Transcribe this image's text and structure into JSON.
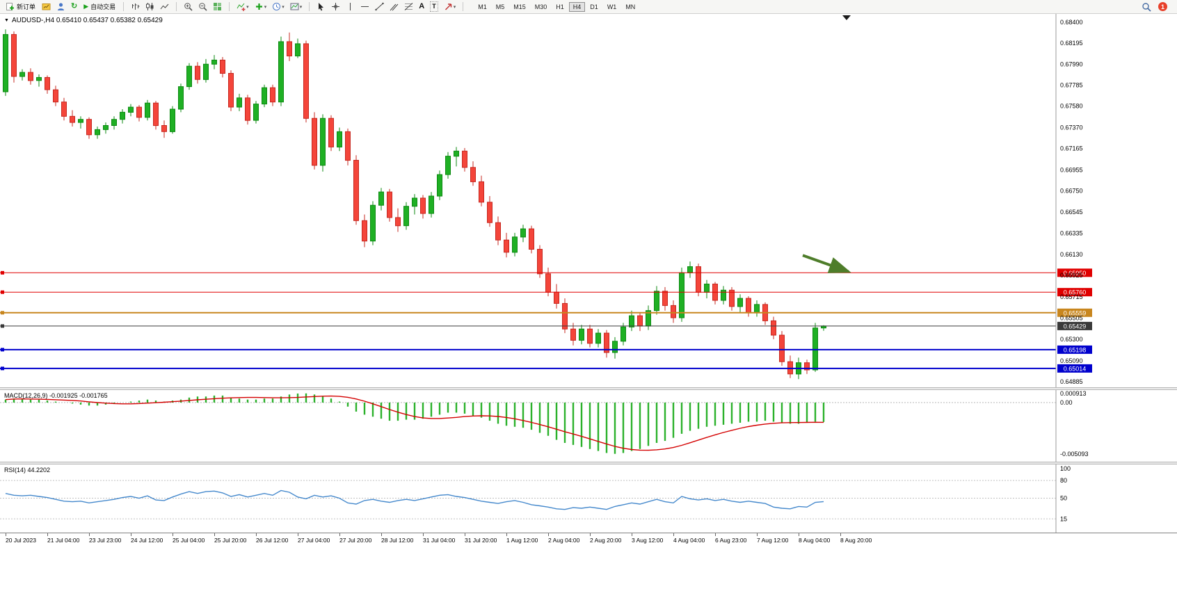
{
  "toolbar": {
    "new_order": "新订单",
    "auto_trading": "自动交易",
    "timeframes": [
      "M1",
      "M5",
      "M15",
      "M30",
      "H1",
      "H4",
      "D1",
      "W1",
      "MN"
    ],
    "active_timeframe": "H4",
    "notification_badge": "1"
  },
  "chart": {
    "title": "AUDUSD-,H4 0.65410 0.65437 0.65382 0.65429"
  },
  "chart_data": [
    {
      "type": "candlestick",
      "symbol": "AUDUSD-",
      "timeframe": "H4",
      "ohlc": {
        "open": "0.65410",
        "high": "0.65437",
        "low": "0.65382",
        "close": "0.65429"
      },
      "colors": {
        "up": "#1fb024",
        "up_border": "#0d8a12",
        "down": "#f4453a",
        "down_border": "#c62820"
      },
      "y_axis_labels": [
        "0.68400",
        "0.68195",
        "0.67990",
        "0.67785",
        "0.67580",
        "0.67370",
        "0.67165",
        "0.66955",
        "0.66750",
        "0.66545",
        "0.66335",
        "0.66130",
        "0.65925",
        "0.65715",
        "0.65505",
        "0.65300",
        "0.65090",
        "0.64885"
      ],
      "x_axis_labels": [
        "20 Jul 2023",
        "21 Jul 04:00",
        "23 Jul 23:00",
        "24 Jul 12:00",
        "25 Jul 04:00",
        "25 Jul 20:00",
        "26 Jul 12:00",
        "27 Jul 04:00",
        "27 Jul 20:00",
        "28 Jul 12:00",
        "31 Jul 04:00",
        "31 Jul 20:00",
        "1 Aug 12:00",
        "2 Aug 04:00",
        "2 Aug 20:00",
        "3 Aug 12:00",
        "4 Aug 04:00",
        "6 Aug 23:00",
        "7 Aug 12:00",
        "8 Aug 04:00",
        "8 Aug 20:00"
      ],
      "hlines": [
        {
          "price": 0.6595,
          "label": "0.65950",
          "color": "#e00000",
          "width": 1
        },
        {
          "price": 0.6576,
          "label": "0.65760",
          "color": "#e00000",
          "width": 1
        },
        {
          "price": 0.65559,
          "label": "0.65559",
          "color": "#c8861e",
          "width": 2
        },
        {
          "price": 0.65429,
          "label": "0.65429",
          "color": "#3a3a3a",
          "width": 1
        },
        {
          "price": 0.65198,
          "label": "0.65198",
          "color": "#0000cd",
          "width": 2
        },
        {
          "price": 0.65014,
          "label": "0.65014",
          "color": "#0000cd",
          "width": 2
        }
      ],
      "arrow": {
        "from_index": 95.5,
        "from_price": 0.6612,
        "to_index": 101,
        "to_price": 0.6596,
        "color": "#4e7d2a"
      },
      "candles": [
        [
          0.6772,
          0.6833,
          0.6768,
          0.6828
        ],
        [
          0.6828,
          0.6831,
          0.6781,
          0.6787
        ],
        [
          0.6787,
          0.6794,
          0.6783,
          0.6791
        ],
        [
          0.6791,
          0.6795,
          0.6779,
          0.6783
        ],
        [
          0.6783,
          0.6789,
          0.6777,
          0.6786
        ],
        [
          0.6786,
          0.6788,
          0.677,
          0.6774
        ],
        [
          0.6774,
          0.6778,
          0.6758,
          0.6762
        ],
        [
          0.6762,
          0.6766,
          0.6744,
          0.6748
        ],
        [
          0.6748,
          0.6754,
          0.6738,
          0.6742
        ],
        [
          0.6742,
          0.6748,
          0.6736,
          0.6745
        ],
        [
          0.6745,
          0.6747,
          0.6726,
          0.673
        ],
        [
          0.673,
          0.6738,
          0.6726,
          0.6735
        ],
        [
          0.6735,
          0.6742,
          0.6731,
          0.6739
        ],
        [
          0.6739,
          0.6748,
          0.6735,
          0.6745
        ],
        [
          0.6745,
          0.6755,
          0.6741,
          0.6752
        ],
        [
          0.6752,
          0.676,
          0.6748,
          0.6757
        ],
        [
          0.6757,
          0.6759,
          0.6743,
          0.6747
        ],
        [
          0.6747,
          0.6764,
          0.6744,
          0.6761
        ],
        [
          0.6761,
          0.6763,
          0.6735,
          0.6739
        ],
        [
          0.6739,
          0.6744,
          0.6727,
          0.6733
        ],
        [
          0.6733,
          0.6758,
          0.6731,
          0.6755
        ],
        [
          0.6755,
          0.678,
          0.6752,
          0.6777
        ],
        [
          0.6777,
          0.68,
          0.6774,
          0.6797
        ],
        [
          0.6797,
          0.6801,
          0.678,
          0.6784
        ],
        [
          0.6784,
          0.6804,
          0.6781,
          0.6799
        ],
        [
          0.6799,
          0.6808,
          0.6794,
          0.6803
        ],
        [
          0.6803,
          0.6806,
          0.6786,
          0.679
        ],
        [
          0.679,
          0.6793,
          0.6753,
          0.6757
        ],
        [
          0.6757,
          0.677,
          0.6753,
          0.6766
        ],
        [
          0.6766,
          0.6769,
          0.674,
          0.6744
        ],
        [
          0.6744,
          0.6763,
          0.6741,
          0.676
        ],
        [
          0.676,
          0.6779,
          0.6757,
          0.6776
        ],
        [
          0.6776,
          0.6779,
          0.6758,
          0.6762
        ],
        [
          0.6762,
          0.6826,
          0.6758,
          0.6821
        ],
        [
          0.6821,
          0.683,
          0.6802,
          0.6807
        ],
        [
          0.6807,
          0.6824,
          0.6805,
          0.6819
        ],
        [
          0.6819,
          0.6822,
          0.6742,
          0.6746
        ],
        [
          0.6746,
          0.6752,
          0.6696,
          0.67
        ],
        [
          0.67,
          0.675,
          0.6694,
          0.6746
        ],
        [
          0.6746,
          0.6749,
          0.6714,
          0.6718
        ],
        [
          0.6718,
          0.6737,
          0.6714,
          0.6733
        ],
        [
          0.6733,
          0.6736,
          0.67,
          0.6705
        ],
        [
          0.6705,
          0.671,
          0.6642,
          0.6646
        ],
        [
          0.6646,
          0.6652,
          0.662,
          0.6626
        ],
        [
          0.6626,
          0.6665,
          0.6622,
          0.6661
        ],
        [
          0.6661,
          0.6678,
          0.6656,
          0.6674
        ],
        [
          0.6674,
          0.6677,
          0.6645,
          0.6649
        ],
        [
          0.6649,
          0.6658,
          0.6635,
          0.6641
        ],
        [
          0.6641,
          0.6664,
          0.6637,
          0.666
        ],
        [
          0.666,
          0.6672,
          0.6652,
          0.6668
        ],
        [
          0.6668,
          0.6671,
          0.6648,
          0.6653
        ],
        [
          0.6653,
          0.6674,
          0.6649,
          0.667
        ],
        [
          0.667,
          0.6695,
          0.6666,
          0.6691
        ],
        [
          0.6691,
          0.6713,
          0.6687,
          0.6709
        ],
        [
          0.6709,
          0.6718,
          0.6699,
          0.6714
        ],
        [
          0.6714,
          0.6717,
          0.6694,
          0.6698
        ],
        [
          0.6698,
          0.6704,
          0.668,
          0.6684
        ],
        [
          0.6684,
          0.669,
          0.666,
          0.6664
        ],
        [
          0.6664,
          0.667,
          0.664,
          0.6644
        ],
        [
          0.6644,
          0.665,
          0.6622,
          0.6627
        ],
        [
          0.6627,
          0.6634,
          0.661,
          0.6615
        ],
        [
          0.6615,
          0.6634,
          0.6611,
          0.663
        ],
        [
          0.663,
          0.6642,
          0.6625,
          0.6638
        ],
        [
          0.6638,
          0.6641,
          0.6614,
          0.6618
        ],
        [
          0.6618,
          0.6622,
          0.659,
          0.6594
        ],
        [
          0.6594,
          0.66,
          0.6572,
          0.6576
        ],
        [
          0.6576,
          0.6584,
          0.656,
          0.6565
        ],
        [
          0.6565,
          0.657,
          0.6536,
          0.654
        ],
        [
          0.654,
          0.6546,
          0.6524,
          0.6529
        ],
        [
          0.6529,
          0.6544,
          0.6525,
          0.654
        ],
        [
          0.654,
          0.6544,
          0.6522,
          0.6526
        ],
        [
          0.6526,
          0.654,
          0.6522,
          0.6536
        ],
        [
          0.6536,
          0.6539,
          0.6512,
          0.6517
        ],
        [
          0.6517,
          0.6532,
          0.6511,
          0.6528
        ],
        [
          0.6528,
          0.6546,
          0.6524,
          0.6542
        ],
        [
          0.6542,
          0.6558,
          0.6538,
          0.6553
        ],
        [
          0.6553,
          0.6556,
          0.6538,
          0.6543
        ],
        [
          0.6543,
          0.6563,
          0.6539,
          0.6558
        ],
        [
          0.6558,
          0.6582,
          0.6554,
          0.6577
        ],
        [
          0.6577,
          0.6581,
          0.6558,
          0.6563
        ],
        [
          0.6563,
          0.6568,
          0.6546,
          0.6551
        ],
        [
          0.6551,
          0.66,
          0.6547,
          0.6595
        ],
        [
          0.6595,
          0.6606,
          0.659,
          0.6601
        ],
        [
          0.6601,
          0.6604,
          0.6572,
          0.6576
        ],
        [
          0.6576,
          0.6588,
          0.657,
          0.6584
        ],
        [
          0.6584,
          0.6586,
          0.6564,
          0.6568
        ],
        [
          0.6568,
          0.6582,
          0.6564,
          0.6578
        ],
        [
          0.6578,
          0.6581,
          0.6558,
          0.6562
        ],
        [
          0.6562,
          0.6574,
          0.6556,
          0.657
        ],
        [
          0.657,
          0.6572,
          0.6552,
          0.6556
        ],
        [
          0.6556,
          0.6568,
          0.6552,
          0.6564
        ],
        [
          0.6564,
          0.6566,
          0.6544,
          0.6548
        ],
        [
          0.6548,
          0.6552,
          0.653,
          0.6534
        ],
        [
          0.6534,
          0.6538,
          0.6504,
          0.6508
        ],
        [
          0.6508,
          0.6514,
          0.6492,
          0.6496
        ],
        [
          0.6496,
          0.6512,
          0.6491,
          0.6507
        ],
        [
          0.6507,
          0.651,
          0.6496,
          0.65
        ],
        [
          0.65,
          0.6546,
          0.6498,
          0.6541
        ],
        [
          0.6541,
          0.65437,
          0.65382,
          0.65429
        ]
      ]
    },
    {
      "type": "bar",
      "name": "MACD(12,26,9)",
      "values_text": "-0.001925 -0.001765",
      "macd_value": "-0.001925",
      "signal_value": "-0.001765",
      "color": "#2bb12b",
      "signal_color": "#d40000",
      "axis_labels": [
        "0.000913",
        "0.00",
        "-0.005093"
      ],
      "values": [
        0.0003,
        0.0004,
        0.0004,
        0.0003,
        0.0003,
        0.0002,
        0.0001,
        0.0,
        -0.0001,
        -0.0002,
        -0.0003,
        -0.0003,
        -0.0002,
        -0.0001,
        0.0,
        0.0001,
        0.0002,
        0.0003,
        0.0002,
        0.0001,
        0.0002,
        0.0003,
        0.0005,
        0.0006,
        0.0006,
        0.0007,
        0.0007,
        0.0005,
        0.0004,
        0.0003,
        0.0003,
        0.0004,
        0.0004,
        0.0006,
        0.0008,
        0.0009,
        0.000913,
        0.0008,
        0.0006,
        0.0004,
        0.0001,
        -0.0004,
        -0.0009,
        -0.0012,
        -0.0014,
        -0.0016,
        -0.0018,
        -0.0018,
        -0.0017,
        -0.0017,
        -0.0016,
        -0.0014,
        -0.0012,
        -0.001,
        -0.001,
        -0.0011,
        -0.0013,
        -0.0015,
        -0.0018,
        -0.0021,
        -0.0023,
        -0.0024,
        -0.0025,
        -0.0027,
        -0.003,
        -0.0033,
        -0.0037,
        -0.004,
        -0.0042,
        -0.0044,
        -0.0046,
        -0.0048,
        -0.005,
        -0.005093,
        -0.005,
        -0.0048,
        -0.0046,
        -0.0043,
        -0.004,
        -0.0038,
        -0.0035,
        -0.0031,
        -0.0028,
        -0.0026,
        -0.0024,
        -0.0023,
        -0.0022,
        -0.0021,
        -0.002,
        -0.0019,
        -0.0019,
        -0.0018,
        -0.0019,
        -0.002,
        -0.0021,
        -0.0021,
        -0.002,
        -0.0019,
        -0.001925
      ]
    },
    {
      "type": "line",
      "name": "RSI(14)",
      "value_text": "44.2202",
      "color": "#4488cc",
      "levels": [
        "100",
        "80",
        "50",
        "15"
      ],
      "values": [
        58,
        55,
        54,
        55,
        53,
        51,
        48,
        45,
        44,
        45,
        42,
        44,
        46,
        48,
        51,
        53,
        50,
        54,
        47,
        46,
        52,
        57,
        61,
        58,
        61,
        62,
        59,
        53,
        56,
        52,
        55,
        58,
        55,
        63,
        60,
        52,
        49,
        55,
        52,
        54,
        50,
        42,
        40,
        46,
        48,
        45,
        43,
        46,
        48,
        46,
        49,
        52,
        55,
        56,
        53,
        51,
        48,
        45,
        43,
        41,
        44,
        46,
        43,
        39,
        37,
        35,
        32,
        31,
        34,
        33,
        35,
        33,
        31,
        36,
        39,
        42,
        40,
        44,
        48,
        44,
        42,
        53,
        49,
        47,
        49,
        46,
        48,
        45,
        43,
        45,
        43,
        41,
        35,
        33,
        32,
        36,
        35,
        43,
        44.2202
      ]
    }
  ]
}
